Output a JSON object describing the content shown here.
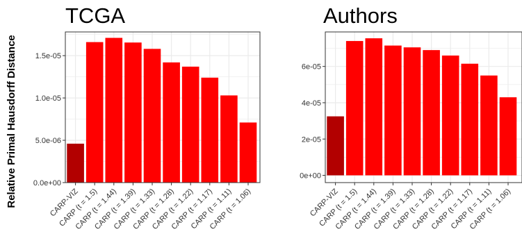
{
  "y_axis_label": "Relative Primal Hausdorff Distance",
  "colors": {
    "highlight": "#B20000",
    "bar": "#FF0000",
    "grid": "#EBEBEB",
    "panel_border": "#333333"
  },
  "chart_data": [
    {
      "type": "bar",
      "title": "TCGA",
      "xlabel": "",
      "ylabel": "Relative Primal Hausdorff Distance",
      "categories": [
        "CARP-VIZ",
        "CARP (t = 1.5)",
        "CARP (t = 1.44)",
        "CARP (t = 1.39)",
        "CARP (t = 1.33)",
        "CARP (t = 1.28)",
        "CARP (t = 1.22)",
        "CARP (t = 1.17)",
        "CARP (t = 1.11)",
        "CARP (t = 1.06)"
      ],
      "values": [
        4.6e-06,
        1.66e-05,
        1.71e-05,
        1.655e-05,
        1.58e-05,
        1.42e-05,
        1.37e-05,
        1.24e-05,
        1.03e-05,
        7.1e-06
      ],
      "ylim": [
        0,
        1.78e-05
      ],
      "yticks": [
        0,
        5e-06,
        1e-05,
        1.5e-05
      ],
      "ytick_labels": [
        "0.0e+00",
        "5.0e-06",
        "1.0e-05",
        "1.5e-05"
      ],
      "grid": true
    },
    {
      "type": "bar",
      "title": "Authors",
      "xlabel": "",
      "ylabel": "",
      "categories": [
        "CARP-VIZ",
        "CARP (t = 1.5)",
        "CARP (t = 1.44)",
        "CARP (t = 1.39)",
        "CARP (t = 1.33)",
        "CARP (t = 1.28)",
        "CARP (t = 1.22)",
        "CARP (t = 1.17)",
        "CARP (t = 1.11)",
        "CARP (t = 1.06)"
      ],
      "values": [
        3.25e-05,
        7.4e-05,
        7.55e-05,
        7.15e-05,
        7.05e-05,
        6.9e-05,
        6.6e-05,
        6.15e-05,
        5.5e-05,
        4.3e-05
      ],
      "ylim": [
        -4e-06,
        7.9e-05
      ],
      "yticks": [
        0,
        2e-05,
        4e-05,
        6e-05
      ],
      "ytick_labels": [
        "0e+00",
        "2e-05",
        "4e-05",
        "6e-05"
      ],
      "grid": true
    }
  ]
}
